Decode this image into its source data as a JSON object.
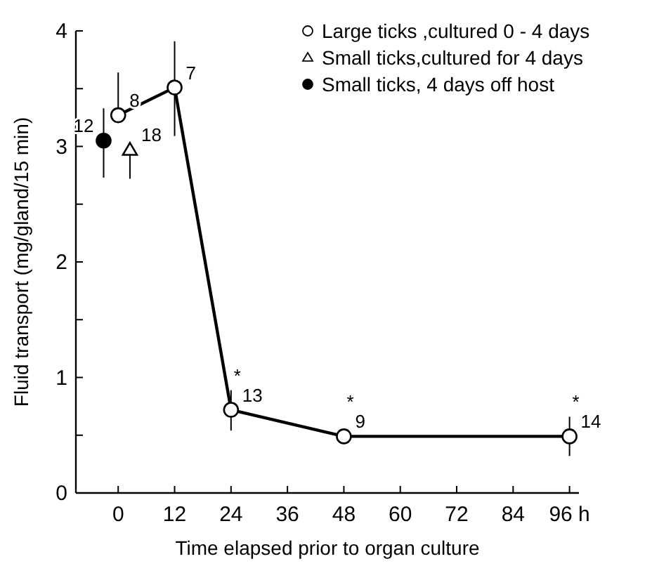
{
  "chart_data": {
    "type": "line",
    "xlabel": "Time elapsed prior to organ culture",
    "ylabel": "Fluid transport (mg/gland/15 min)",
    "xlim": [
      -9,
      98
    ],
    "xticks": [
      0,
      12,
      24,
      36,
      48,
      60,
      72,
      84,
      {
        "value": 96,
        "label": "96 h"
      }
    ],
    "ylim": [
      0,
      4
    ],
    "yticks": [
      0,
      {
        "value": 0.5,
        "label": null
      },
      1,
      {
        "value": 1.5,
        "label": null
      },
      2,
      {
        "value": 2.5,
        "label": null
      },
      3,
      {
        "value": 3.5,
        "label": null
      },
      4
    ],
    "grid": false,
    "legend": "top right",
    "series": [
      {
        "name": "Large ticks ,cultured 0 - 4 days",
        "type": "line",
        "marker": "circle",
        "color": "#ffffff",
        "x": [
          0,
          12,
          24,
          48,
          96
        ],
        "values": [
          3.27,
          3.51,
          0.72,
          0.49,
          0.49
        ],
        "errors": [
          [
            3.27,
            3.64
          ],
          [
            3.09,
            3.91
          ],
          [
            0.54,
            0.89
          ],
          null,
          [
            0.32,
            0.66
          ]
        ]
      },
      {
        "name": "Small ticks,cultured for 4 days",
        "type": "scatter",
        "marker": "triangle",
        "color": "#ffffff",
        "x": [
          2.5
        ],
        "values": [
          2.97
        ],
        "errors": [
          [
            2.72,
            2.97
          ]
        ]
      },
      {
        "name": "Small ticks, 4 days off host",
        "type": "scatter",
        "marker": "circle",
        "color": "#000000",
        "x": [
          -3.1
        ],
        "values": [
          3.05
        ],
        "errors": [
          [
            2.73,
            3.33
          ]
        ]
      }
    ],
    "annotations": [
      {
        "text": "8",
        "x": 0,
        "y": 3.27
      },
      {
        "text": "7",
        "x": 12,
        "y": 3.51
      },
      {
        "text": "12",
        "x": -3.1,
        "y": 3.05
      },
      {
        "text": "18",
        "x": 2.5,
        "y": 2.97
      },
      {
        "text": "13",
        "x": 24,
        "y": 0.72
      },
      {
        "text": "*",
        "x": 24,
        "y": 0.72
      },
      {
        "text": "9",
        "x": 48,
        "y": 0.49
      },
      {
        "text": "*",
        "x": 48,
        "y": 0.49
      },
      {
        "text": "14",
        "x": 96,
        "y": 0.49
      },
      {
        "text": "*",
        "x": 96,
        "y": 0.49
      }
    ]
  }
}
